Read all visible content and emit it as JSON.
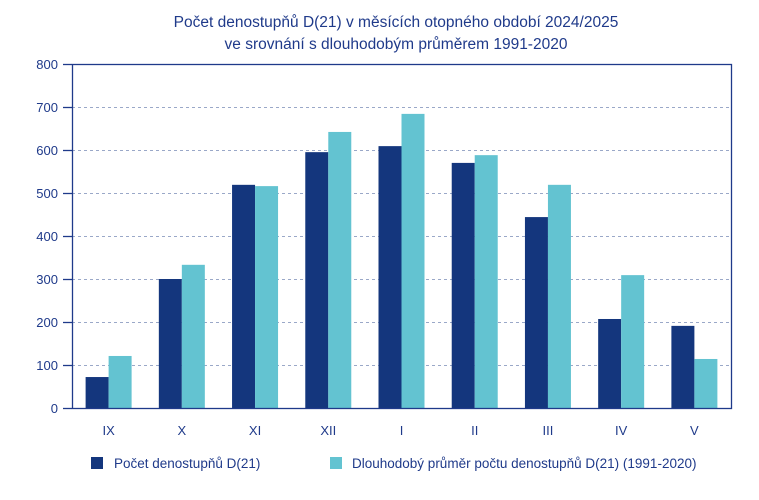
{
  "chart_data": {
    "type": "bar",
    "title": [
      "Počet denostupňů D(21) v měsících otopného období 2024/2025",
      "ve srovnání s dlouhodobým průměrem 1991-2020"
    ],
    "xlabel": "",
    "ylabel": "",
    "ylim": [
      0,
      800
    ],
    "yticks": [
      0,
      100,
      200,
      300,
      400,
      500,
      600,
      700,
      800
    ],
    "grid": true,
    "legend_position": "bottom",
    "categories": [
      "IX",
      "X",
      "XI",
      "XII",
      "I",
      "II",
      "III",
      "IV",
      "V"
    ],
    "series": [
      {
        "name": "Počet denostupňů D(21)",
        "color": "#14367d",
        "values": [
          72,
          300,
          519,
          595,
          609,
          570,
          444,
          207,
          191
        ]
      },
      {
        "name": "Dlouhodobý průměr počtu denostupňů D(21) (1991-2020)",
        "color": "#63c3d1",
        "values": [
          121,
          333,
          516,
          642,
          684,
          588,
          519,
          309,
          114
        ]
      }
    ]
  },
  "colors": {
    "axis": "#1f3a8a",
    "grid": "#9aa8c8",
    "text": "#1f3a8a"
  }
}
